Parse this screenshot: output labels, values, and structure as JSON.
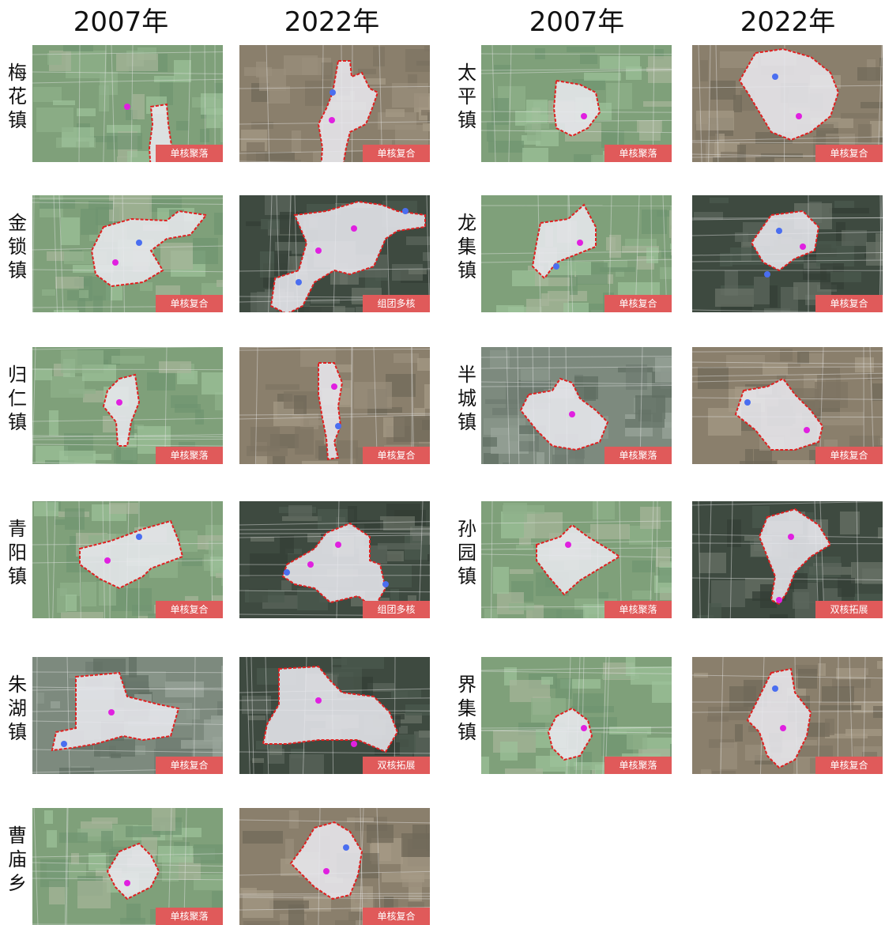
{
  "headers": [
    "2007年",
    "2022年",
    "2007年",
    "2022年"
  ],
  "towns": [
    {
      "name": [
        "梅",
        "花",
        "镇"
      ],
      "p2007": "单核聚落",
      "p2022": "单核复合",
      "tone2007": "green",
      "tone2022": "brown"
    },
    {
      "name": [
        "金",
        "锁",
        "镇"
      ],
      "p2007": "单核复合",
      "p2022": "组团多核",
      "tone2007": "green",
      "tone2022": "dark"
    },
    {
      "name": [
        "归",
        "仁",
        "镇"
      ],
      "p2007": "单核聚落",
      "p2022": "单核复合",
      "tone2007": "green",
      "tone2022": "brown"
    },
    {
      "name": [
        "青",
        "阳",
        "镇"
      ],
      "p2007": "单核复合",
      "p2022": "组团多核",
      "tone2007": "green",
      "tone2022": "dark"
    },
    {
      "name": [
        "朱",
        "湖",
        "镇"
      ],
      "p2007": "单核复合",
      "p2022": "双核拓展",
      "tone2007": "gray",
      "tone2022": "dark"
    },
    {
      "name": [
        "曹",
        "庙",
        "乡"
      ],
      "p2007": "单核聚落",
      "p2022": "单核复合",
      "tone2007": "green",
      "tone2022": "brown"
    },
    {
      "name": [
        "太",
        "平",
        "镇"
      ],
      "p2007": "单核聚落",
      "p2022": "单核复合",
      "tone2007": "green",
      "tone2022": "brown"
    },
    {
      "name": [
        "龙",
        "集",
        "镇"
      ],
      "p2007": "单核复合",
      "p2022": "单核复合",
      "tone2007": "green",
      "tone2022": "dark"
    },
    {
      "name": [
        "半",
        "城",
        "镇"
      ],
      "p2007": "单核聚落",
      "p2022": "单核复合",
      "tone2007": "gray",
      "tone2022": "brown"
    },
    {
      "name": [
        "孙",
        "园",
        "镇"
      ],
      "p2007": "单核聚落",
      "p2022": "双核拓展",
      "tone2007": "green",
      "tone2022": "dark"
    },
    {
      "name": [
        "界",
        "集",
        "镇"
      ],
      "p2007": "单核聚落",
      "p2022": "单核复合",
      "tone2007": "green",
      "tone2022": "brown"
    }
  ],
  "colors": {
    "badge": "#e05a5a",
    "boundary": "#e02020",
    "core_primary": "#e020e0",
    "core_secondary": "#4a6ef0",
    "built_area": "#e8e8ee"
  }
}
